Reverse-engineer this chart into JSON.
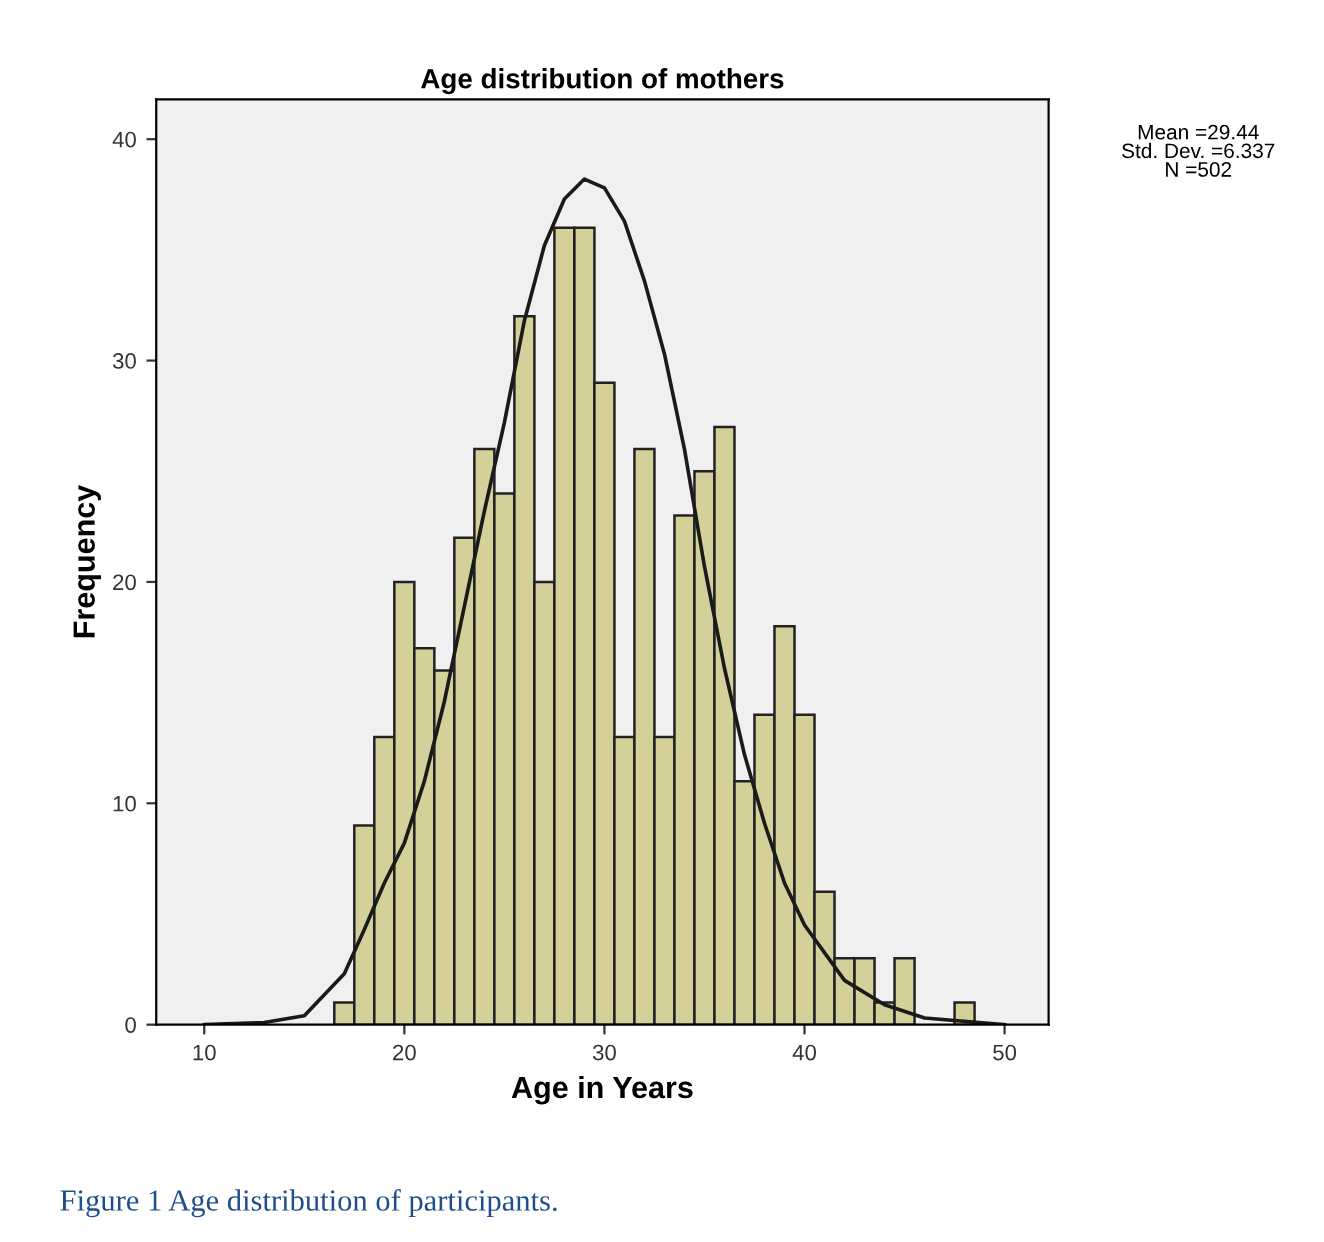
{
  "chart_data": {
    "type": "histogram",
    "title": "Age distribution of mothers",
    "xlabel": "Age in Years",
    "ylabel": "Frequency",
    "bins": [
      16.5,
      17.5,
      18.5,
      19.5,
      20.5,
      21.5,
      22.5,
      23.5,
      24.5,
      25.5,
      26.5,
      27.5,
      28.5,
      29.5,
      30.5,
      31.5,
      32.5,
      33.5,
      34.5,
      35.5,
      36.5,
      37.5,
      38.5,
      39.5,
      40.5,
      41.5,
      42.5,
      43.5,
      44.5,
      45.5,
      46.5,
      47.5,
      48.5
    ],
    "values": [
      1,
      9,
      13,
      20,
      17,
      16,
      22,
      26,
      24,
      32,
      20,
      36,
      36,
      29,
      13,
      26,
      13,
      23,
      25,
      27,
      11,
      14,
      18,
      14,
      6,
      3,
      3,
      1,
      3,
      0,
      0,
      1
    ],
    "color": "#d4d09a",
    "series": [
      {
        "type": "line",
        "color": "#1a1a1a",
        "x": [
          10,
          13,
          15,
          17,
          18,
          19,
          20,
          21,
          22,
          23,
          24,
          25,
          26,
          27,
          28,
          29,
          30,
          31,
          32,
          33,
          34,
          35,
          36,
          37,
          38,
          39,
          40,
          42,
          44,
          46,
          50
        ],
        "values": [
          0,
          0.1,
          0.4,
          2.3,
          4.3,
          6.4,
          8.2,
          11,
          14.6,
          18.9,
          23.2,
          27.2,
          31.8,
          35.2,
          37.3,
          38.2,
          37.8,
          36.3,
          33.6,
          30.3,
          26,
          20.7,
          16.1,
          12.2,
          9.1,
          6.4,
          4.5,
          2,
          0.9,
          0.3,
          0
        ]
      }
    ],
    "xlim": [
      7.6,
      52.2
    ],
    "ylim": [
      0,
      41.8
    ],
    "xticks": [
      10,
      20,
      30,
      40,
      50
    ],
    "yticks": [
      0,
      10,
      20,
      30,
      40
    ],
    "grid": false,
    "legend": false,
    "annotations": [
      "Mean =29.44\nStd. Dev. =6.337\nN =502",
      "Figure 1 Age distribution of participants."
    ]
  }
}
